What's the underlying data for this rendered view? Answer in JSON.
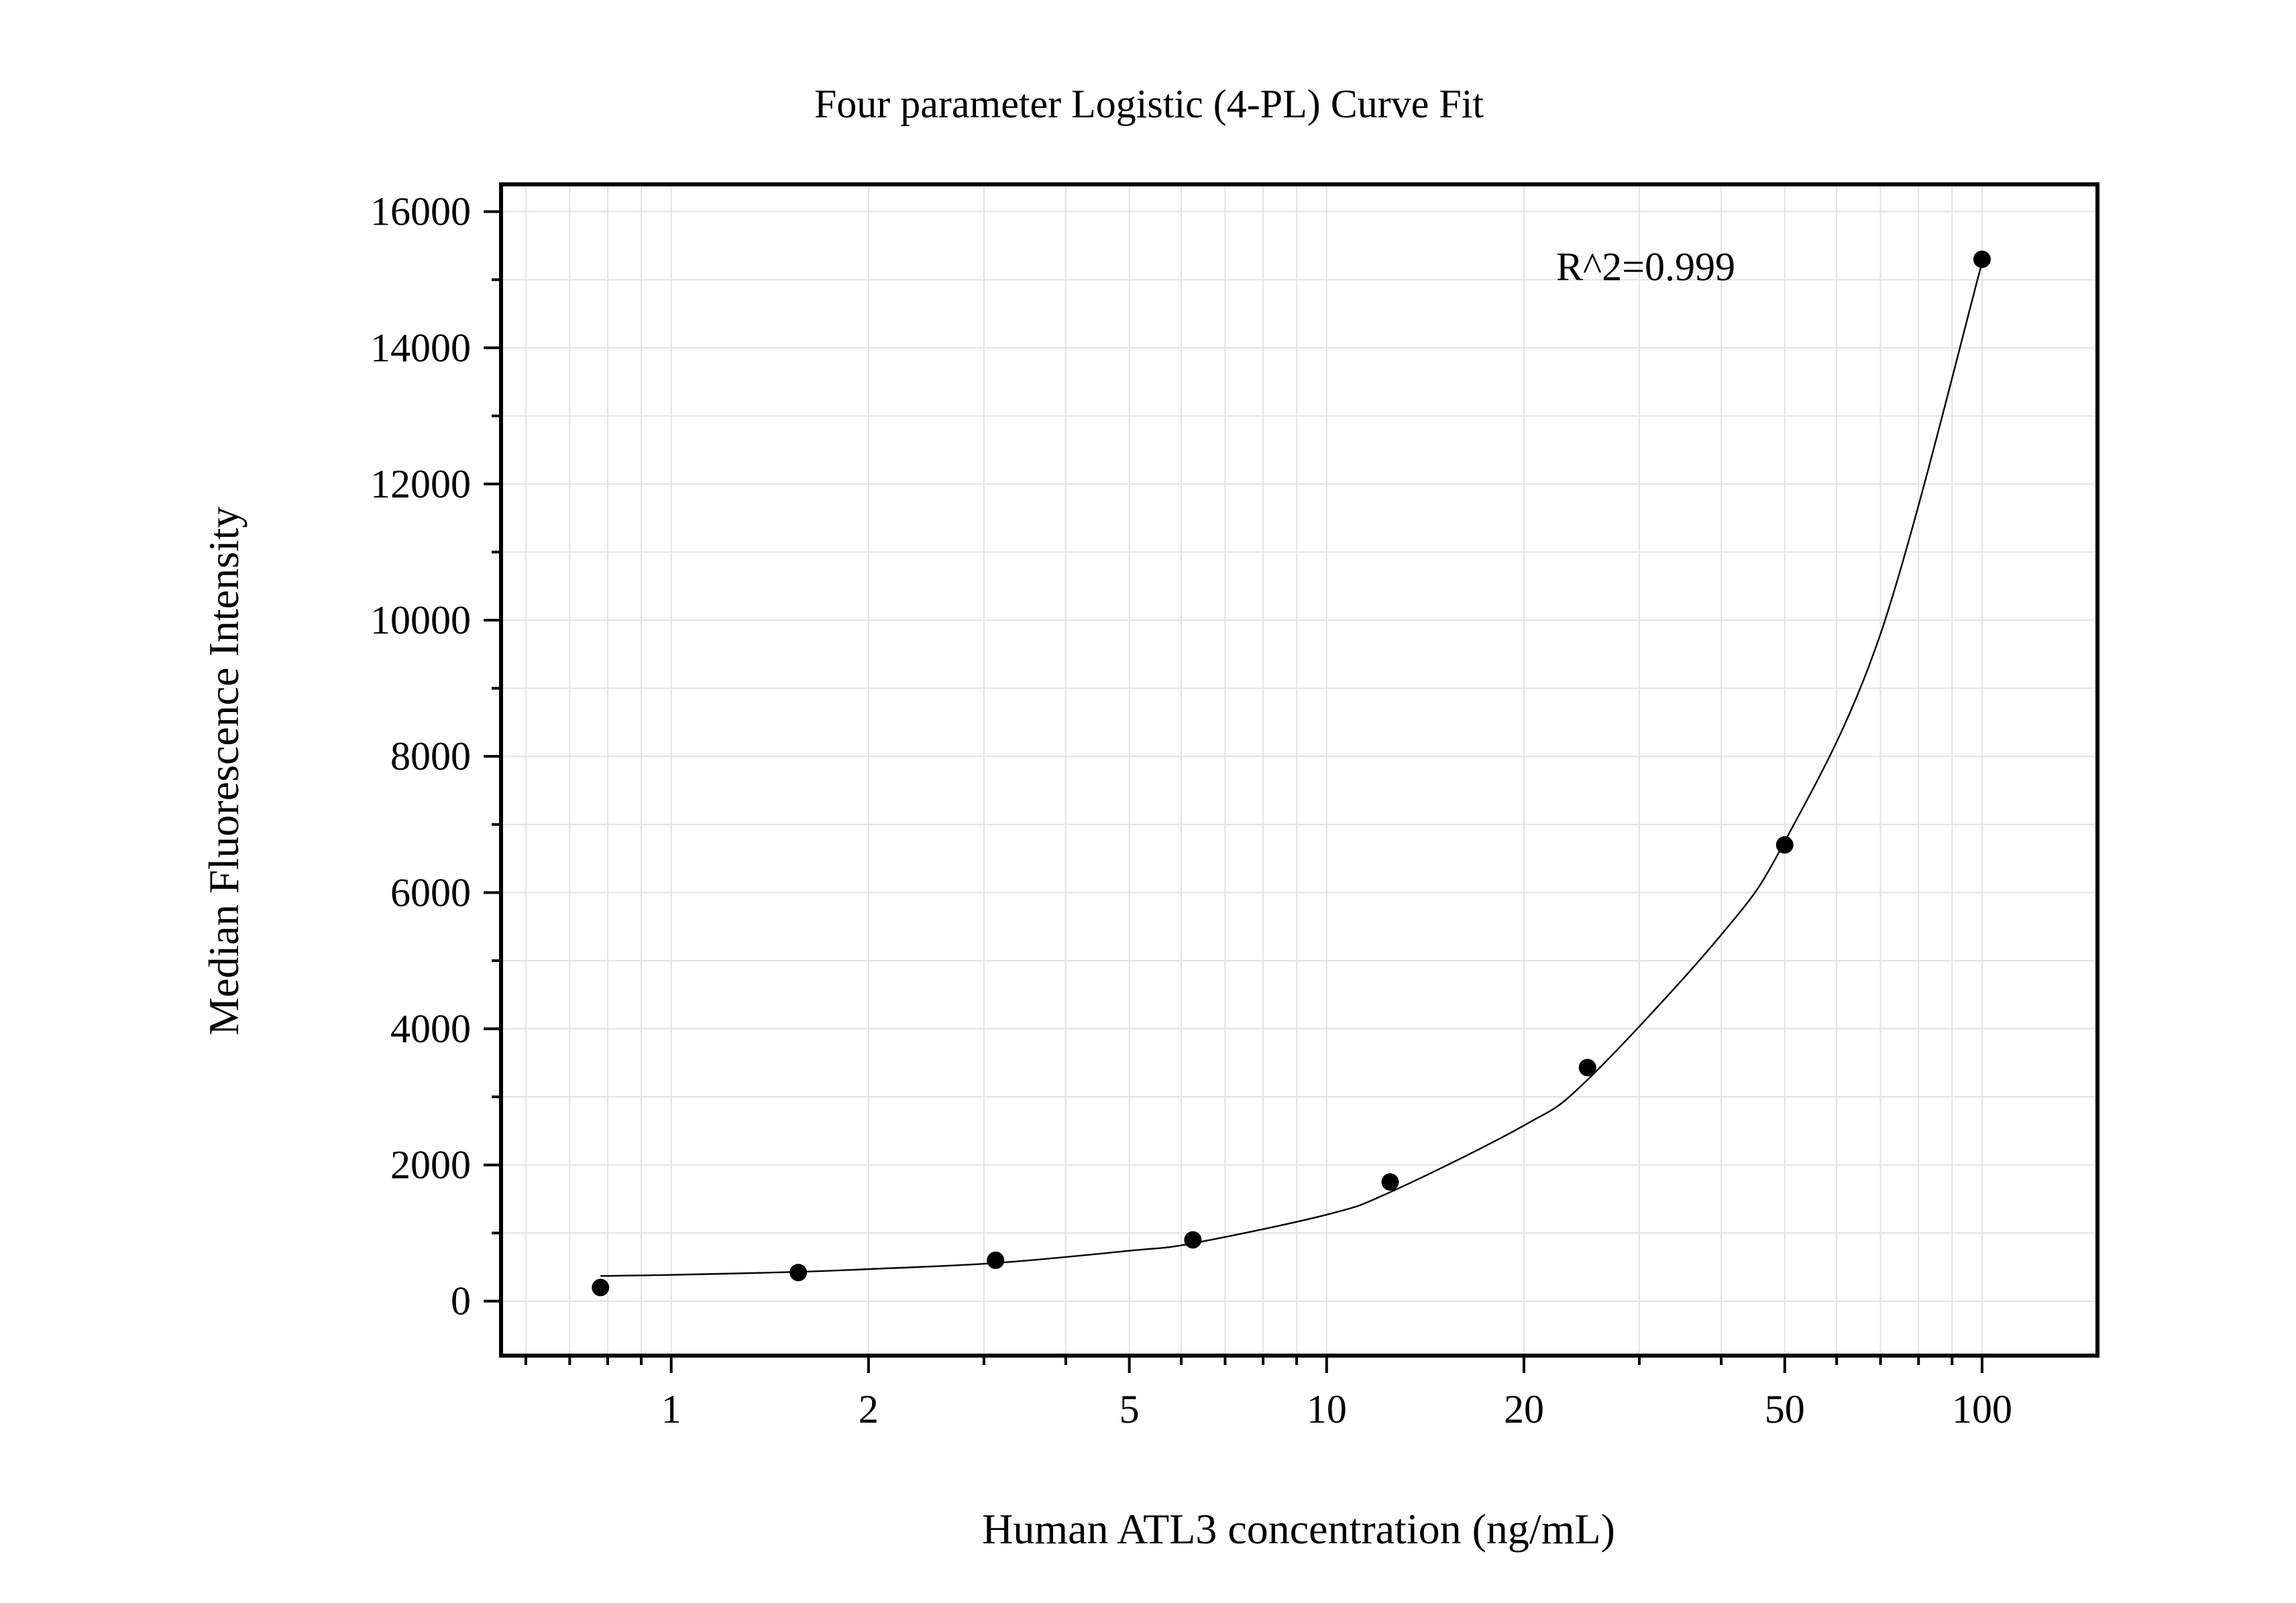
{
  "chart_data": {
    "type": "scatter",
    "title": "Four parameter Logistic (4-PL) Curve Fit",
    "xlabel": "Human ATL3 concentration (ng/mL)",
    "ylabel": "Median Fluorescence Intensity",
    "x_scale": "log",
    "xlim": [
      0.55,
      150
    ],
    "ylim": [
      -800,
      16400
    ],
    "x_ticks": [
      1,
      2,
      5,
      10,
      20,
      50,
      100
    ],
    "x_tick_labels": [
      "1",
      "2",
      "5",
      "10",
      "20",
      "50",
      "100"
    ],
    "y_ticks": [
      0,
      2000,
      4000,
      6000,
      8000,
      10000,
      12000,
      14000,
      16000
    ],
    "y_tick_labels": [
      "0",
      "2000",
      "4000",
      "6000",
      "8000",
      "10000",
      "12000",
      "14000",
      "16000"
    ],
    "grid": true,
    "annotation": "R^2=0.999",
    "series": [
      {
        "type": "scatter",
        "x": [
          0.78,
          1.5625,
          3.125,
          6.25,
          12.5,
          25,
          50,
          100
        ],
        "y": [
          200,
          420,
          600,
          900,
          1750,
          3430,
          6700,
          15300
        ]
      },
      {
        "type": "line",
        "x": [
          0.78,
          1,
          1.5625,
          2,
          3.125,
          5,
          6.25,
          10,
          12.5,
          20,
          25,
          40,
          50,
          70,
          100
        ],
        "y": [
          370,
          385,
          430,
          470,
          560,
          740,
          850,
          1270,
          1600,
          2580,
          3250,
          5380,
          6750,
          9800,
          15250
        ]
      }
    ]
  }
}
